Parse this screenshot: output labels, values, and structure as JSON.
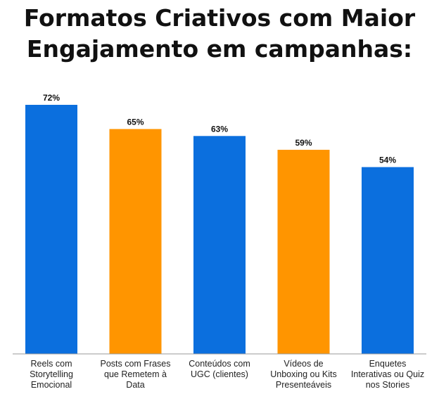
{
  "chart_data": {
    "type": "bar",
    "title_lines": [
      "Formatos Criativos com Maior",
      "Engajamento em campanhas:"
    ],
    "categories": [
      [
        "Reels com",
        "Storytelling",
        "Emocional"
      ],
      [
        "Posts com Frases",
        "que Remetem à",
        "Data"
      ],
      [
        "Conteúdos com",
        "UGC (clientes)"
      ],
      [
        "Vídeos de",
        "Unboxing ou Kits",
        "Presenteáveis"
      ],
      [
        "Enquetes",
        "Interativas ou Quiz",
        "nos Stories"
      ]
    ],
    "values": [
      72,
      65,
      63,
      59,
      54
    ],
    "value_labels": [
      "72%",
      "65%",
      "63%",
      "59%",
      "54%"
    ],
    "ylim": [
      0,
      72
    ],
    "bar_colors": [
      "#0b6fde",
      "#ff9500",
      "#0b6fde",
      "#ff9500",
      "#0b6fde"
    ],
    "grid": false,
    "legend": "none"
  }
}
